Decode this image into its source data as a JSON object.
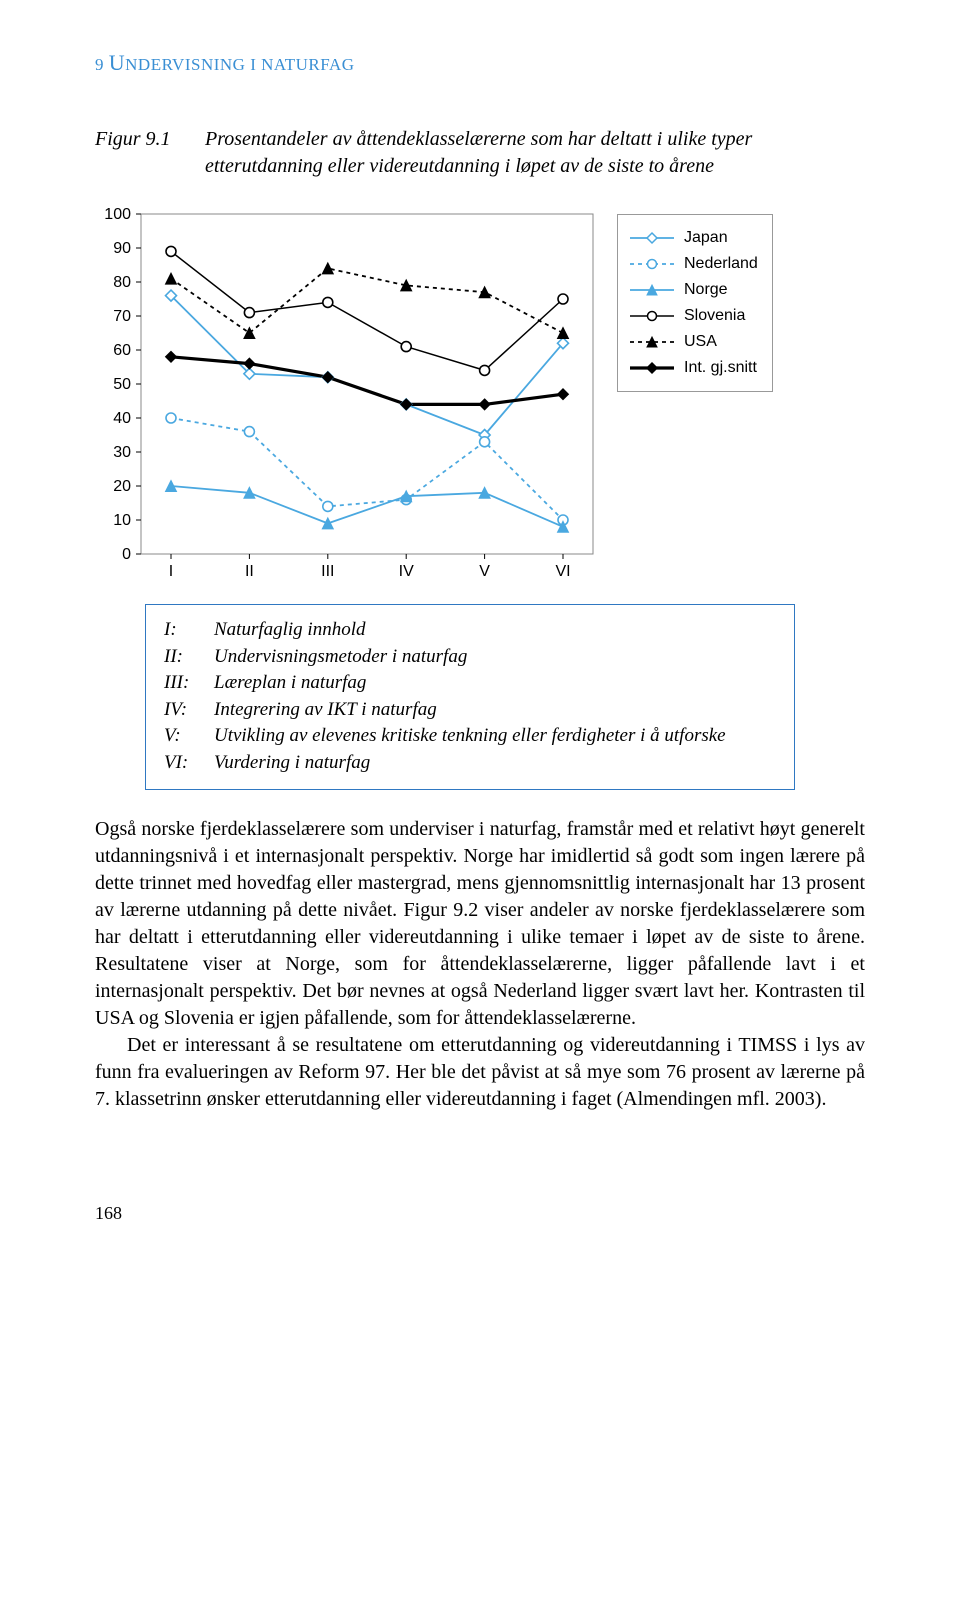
{
  "header": {
    "letterCap": "U",
    "text1": "NDERVISNING I NATURFAG",
    "prefix": "9 "
  },
  "figure": {
    "label": "Figur 9.1",
    "caption": "Prosentandeler av åttendeklasselærerne som har deltatt i ulike typer etterutdanning eller videreutdanning i løpet av de siste to årene"
  },
  "chart": {
    "type": "line",
    "background_color": "#ffffff",
    "grid_color": "#000000",
    "ylim": [
      0,
      100
    ],
    "ytick_step": 10,
    "yticks": [
      "0",
      "10",
      "20",
      "30",
      "40",
      "50",
      "60",
      "70",
      "80",
      "90",
      "100"
    ],
    "xcategories": [
      "I",
      "II",
      "III",
      "IV",
      "V",
      "VI"
    ],
    "tick_fontsize": 16,
    "series": [
      {
        "name": "Japan",
        "color": "#4aa8e0",
        "dash": "none",
        "weight": 1.8,
        "marker": "diamond-open",
        "values": [
          76,
          53,
          52,
          44,
          35,
          62
        ]
      },
      {
        "name": "Nederland",
        "color": "#4aa8e0",
        "dash": "4,4",
        "weight": 1.8,
        "marker": "circle-open",
        "values": [
          40,
          36,
          14,
          16,
          33,
          10
        ]
      },
      {
        "name": "Norge",
        "color": "#4aa8e0",
        "dash": "none",
        "weight": 1.8,
        "marker": "triangle-fill",
        "values": [
          20,
          18,
          9,
          17,
          18,
          8
        ]
      },
      {
        "name": "Slovenia",
        "color": "#000000",
        "dash": "none",
        "weight": 1.5,
        "marker": "circle-open",
        "values": [
          89,
          71,
          74,
          61,
          54,
          75
        ]
      },
      {
        "name": "USA",
        "color": "#000000",
        "dash": "4,4",
        "weight": 1.8,
        "marker": "triangle-fill",
        "values": [
          81,
          65,
          84,
          79,
          77,
          65
        ]
      },
      {
        "name": "Int. gj.snitt",
        "color": "#000000",
        "dash": "none",
        "weight": 3.2,
        "marker": "diamond-fill",
        "values": [
          58,
          56,
          52,
          44,
          44,
          47
        ]
      }
    ]
  },
  "legend": {
    "items": [
      "Japan",
      "Nederland",
      "Norge",
      "Slovenia",
      "USA",
      "Int. gj.snitt"
    ]
  },
  "keybox": [
    {
      "k": "I:",
      "v": "Naturfaglig innhold"
    },
    {
      "k": "II:",
      "v": "Undervisningsmetoder i naturfag"
    },
    {
      "k": "III:",
      "v": "Læreplan i naturfag"
    },
    {
      "k": "IV:",
      "v": "Integrering av IKT i naturfag"
    },
    {
      "k": "V:",
      "v": "Utvikling av elevenes kritiske tenkning eller ferdigheter i å utforske"
    },
    {
      "k": "VI:",
      "v": "Vurdering i naturfag"
    }
  ],
  "paragraphs": [
    "Også norske fjerdeklasselærere som underviser i naturfag, framstår med et relativt høyt generelt utdanningsnivå i et internasjonalt perspektiv. Norge har imidlertid så godt som ingen lærere på dette trinnet med hovedfag eller mastergrad, mens gjennomsnittlig internasjonalt har 13 prosent av lærerne utdanning på dette nivået. Figur 9.2 viser andeler av norske fjerdeklasselærere som har deltatt i etterutdanning eller videreutdanning i ulike temaer i løpet av de siste to årene. Resultatene viser at Norge, som for åttendeklasselærerne, ligger påfallende lavt i et internasjonalt perspektiv. Det bør nevnes at også Nederland ligger svært lavt her. Kontrasten til USA og Slovenia er igjen påfallende, som for åttendeklasselærerne.",
    "Det er interessant å se resultatene om etterutdanning og videreutdanning i TIMSS i lys av funn fra evalueringen av Reform 97. Her ble det påvist at så mye som 76 prosent av lærerne på 7. klassetrinn ønsker etterutdanning eller videreutdanning i faget (Almendingen mfl. 2003)."
  ],
  "pageNumber": "168"
}
